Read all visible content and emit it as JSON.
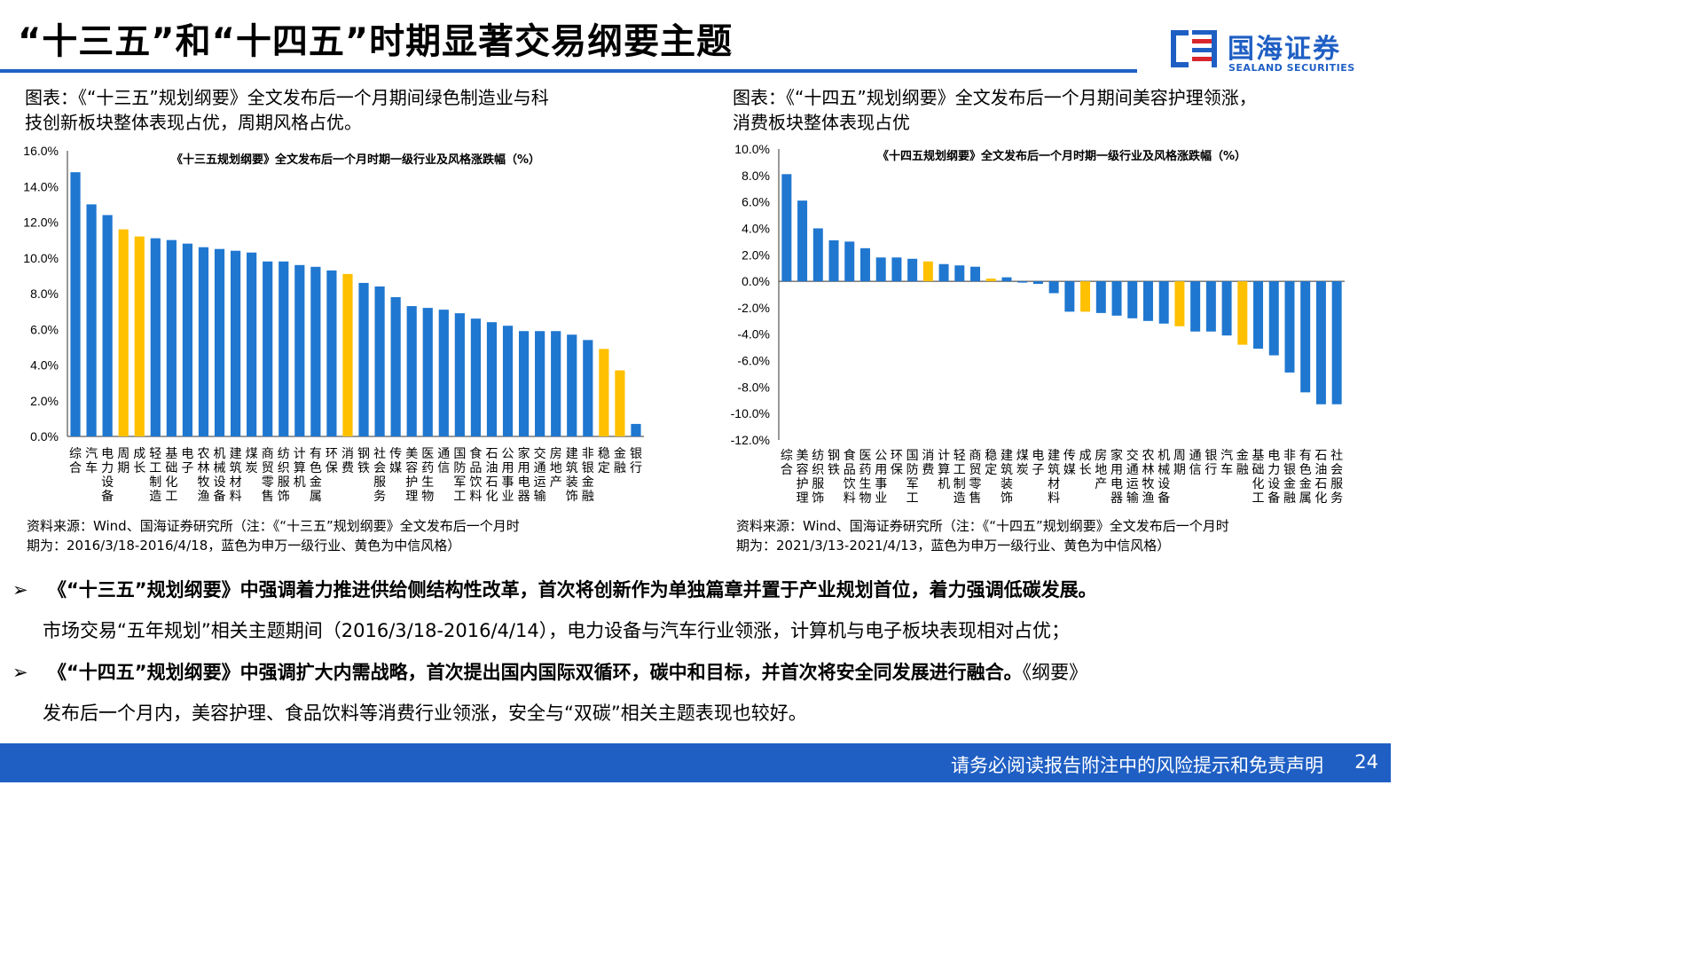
{
  "page": {
    "title": "“十三五”和“十四五”时期显著交易纲要主题",
    "logo_cn": "国海证券",
    "logo_en": "SEALAND SECURITIES",
    "footer": "请务必阅读报告附注中的风险提示和免责声明",
    "page_number": "24",
    "left_caption_1": "图表：《“十三五”规划纲要》全文发布后一个月期间绿色制造业与科",
    "left_caption_2": "技创新板块整体表现占优，周期风格占优。",
    "right_caption_1": "图表：《“十四五”规划纲要》全文发布后一个月期间美容护理领涨，",
    "right_caption_2": "消费板块整体表现占优",
    "left_source_1": "资料来源：Wind、国海证券研究所（注：《“十三五”规划纲要》全文发布后一个月时",
    "left_source_2": "期为：2016/3/18-2016/4/18，蓝色为申万一级行业、黄色为中信风格）",
    "right_source_1": "资料来源：Wind、国海证券研究所（注：《“十四五”规划纲要》全文发布后一个月时",
    "right_source_2": "期为：2021/3/13-2021/4/13，蓝色为申万一级行业、黄色为中信风格）",
    "bullet1_bold": "《“十三五”规划纲要》中强调着力推进供给侧结构性改革，首次将创新作为单独篇章并置于产业规划首位，着力强调低碳发展。",
    "bullet1_text": "市场交易“五年规划”相关主题期间（2016/3/18-2016/4/14），电力设备与汽车行业领涨，计算机与电子板块表现相对占优；",
    "bullet2_bold": "《“十四五”规划纲要》中强调扩大内需战略，首次提出国内国际双循环，碳中和目标，并首次将安全同发展进行融合。",
    "bullet2_tail": "《纲要》",
    "bullet2_text": "发布后一个月内，美容护理、食品饮料等消费行业领涨，安全与“双碳”相关主题表现也较好。",
    "bullet_icon": "arrow-bullet-icon"
  },
  "colors": {
    "blue": "#1f77d0",
    "yellow": "#ffc000",
    "brand": "#1f5fc4",
    "logo_red": "#d9262c"
  },
  "chart_data": [
    {
      "type": "bar",
      "title": "《十三五规划纲要》全文发布后一个月时期一级行业及风格涨跌幅（%）",
      "ylim": [
        0,
        16
      ],
      "yticks": [
        "0.0%",
        "2.0%",
        "4.0%",
        "6.0%",
        "8.0%",
        "10.0%",
        "12.0%",
        "14.0%",
        "16.0%"
      ],
      "categories": [
        "综合",
        "汽车",
        "电力设备",
        "周期",
        "成长",
        "轻工制造",
        "基础化工",
        "电子",
        "农林牧渔",
        "机械设备",
        "建筑材料",
        "煤炭",
        "商贸零售",
        "纺织服饰",
        "计算机",
        "有色金属",
        "环保",
        "消费",
        "钢铁",
        "社会服务",
        "传媒",
        "美容护理",
        "医药生物",
        "通信",
        "国防军工",
        "食品饮料",
        "石油石化",
        "公用事业",
        "家用电器",
        "交通运输",
        "房地产",
        "建筑装饰",
        "非银金融",
        "稳定",
        "金融",
        "银行"
      ],
      "values": [
        14.8,
        13.0,
        12.4,
        11.6,
        11.2,
        11.1,
        11.0,
        10.8,
        10.6,
        10.5,
        10.4,
        10.3,
        9.8,
        9.8,
        9.6,
        9.5,
        9.3,
        9.1,
        8.6,
        8.4,
        7.8,
        7.3,
        7.2,
        7.1,
        6.9,
        6.6,
        6.4,
        6.2,
        5.9,
        5.9,
        5.9,
        5.7,
        5.4,
        4.9,
        3.7,
        0.7
      ],
      "style_flags": [
        0,
        0,
        0,
        1,
        1,
        0,
        0,
        0,
        0,
        0,
        0,
        0,
        0,
        0,
        0,
        0,
        0,
        1,
        0,
        0,
        0,
        0,
        0,
        0,
        0,
        0,
        0,
        0,
        0,
        0,
        0,
        0,
        0,
        1,
        1,
        0
      ]
    },
    {
      "type": "bar",
      "title": "《十四五规划纲要》全文发布后一个月时期一级行业及风格涨跌幅（%）",
      "ylim": [
        -12,
        10
      ],
      "yticks": [
        "-12.0%",
        "-10.0%",
        "-8.0%",
        "-6.0%",
        "-4.0%",
        "-2.0%",
        "0.0%",
        "2.0%",
        "4.0%",
        "6.0%",
        "8.0%",
        "10.0%"
      ],
      "categories": [
        "综合",
        "美容护理",
        "纺织服饰",
        "钢铁",
        "食品饮料",
        "医药生物",
        "公用事业",
        "环保",
        "国防军工",
        "消费",
        "计算机",
        "轻工制造",
        "商贸零售",
        "稳定",
        "建筑装饰",
        "煤炭",
        "电子",
        "建筑材料",
        "传媒",
        "成长",
        "房地产",
        "家用电器",
        "交通运输",
        "农林牧渔",
        "机械设备",
        "周期",
        "通信",
        "银行",
        "汽车",
        "金融",
        "基础化工",
        "电力设备",
        "非银金融",
        "有色金属",
        "石油石化",
        "社会服务"
      ],
      "values": [
        8.1,
        6.1,
        4.0,
        3.1,
        3.0,
        2.5,
        1.8,
        1.8,
        1.7,
        1.5,
        1.3,
        1.2,
        1.1,
        0.2,
        0.3,
        -0.1,
        -0.2,
        -0.9,
        -2.3,
        -2.3,
        -2.4,
        -2.6,
        -2.8,
        -3.0,
        -3.2,
        -3.4,
        -3.8,
        -3.8,
        -4.1,
        -4.8,
        -5.1,
        -5.6,
        -6.9,
        -8.4,
        -9.3,
        -9.3
      ],
      "style_flags": [
        0,
        0,
        0,
        0,
        0,
        0,
        0,
        0,
        0,
        1,
        0,
        0,
        0,
        1,
        0,
        0,
        0,
        0,
        0,
        1,
        0,
        0,
        0,
        0,
        0,
        1,
        0,
        0,
        0,
        1,
        0,
        0,
        0,
        0,
        0,
        0
      ]
    }
  ]
}
